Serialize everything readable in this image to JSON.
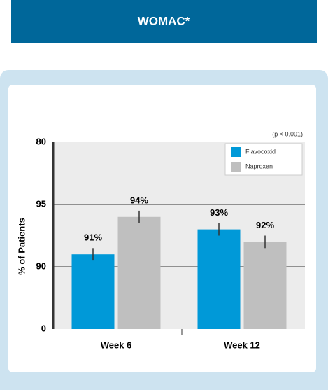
{
  "header": {
    "title": "WOMAC*"
  },
  "chart_data": {
    "type": "bar",
    "annotation": "(p < 0.001)",
    "y_label": "% of Patients",
    "categories": [
      "Week 6",
      "Week 12"
    ],
    "series": [
      {
        "name": "Flavocoxid",
        "color": "#0099d8",
        "values": [
          91,
          93
        ],
        "value_labels": [
          "91%",
          "93%"
        ],
        "errors": [
          0.5,
          0.5
        ]
      },
      {
        "name": "Naproxen",
        "color": "#bfbfbf",
        "values": [
          94,
          92
        ],
        "value_labels": [
          "94%",
          "92%"
        ],
        "errors": [
          0.5,
          0.5
        ]
      }
    ],
    "ylim": [
      85,
      100
    ],
    "yticks": [
      {
        "value": 85,
        "label": "0"
      },
      90,
      95,
      {
        "value": 100,
        "label": "80"
      }
    ],
    "grid": true,
    "legend": "top-right"
  }
}
